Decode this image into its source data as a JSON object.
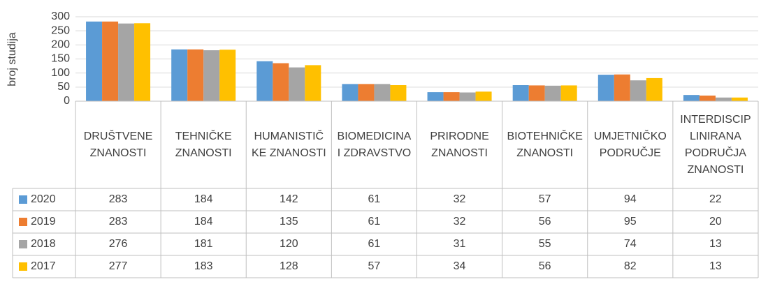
{
  "chart_data": {
    "type": "bar",
    "y_label": "broj studija",
    "categories": [
      "DRUŠTVENE ZNANOSTI",
      "TEHNIČKE ZNANOSTI",
      "HUMANISTIČKE ZNANOSTI",
      "BIOMEDICINA I ZDRAVSTVO",
      "PRIRODNE ZNANOSTI",
      "BIOTEHNIČKE ZNANOSTI",
      "UMJETNIČKO PODRUČJE",
      "INTERDISCIPLINIRANA PODRUČJA ZNANOSTI"
    ],
    "series": [
      {
        "name": "2020",
        "color": "#5b9bd5",
        "values": [
          283,
          184,
          142,
          61,
          32,
          57,
          94,
          22
        ]
      },
      {
        "name": "2019",
        "color": "#ed7d31",
        "values": [
          283,
          184,
          135,
          61,
          32,
          56,
          95,
          20
        ]
      },
      {
        "name": "2018",
        "color": "#a5a5a5",
        "values": [
          276,
          181,
          120,
          61,
          31,
          55,
          74,
          13
        ]
      },
      {
        "name": "2017",
        "color": "#ffc000",
        "values": [
          277,
          183,
          128,
          57,
          34,
          56,
          82,
          13
        ]
      }
    ],
    "ylim": [
      0,
      300
    ],
    "yticks": [
      0,
      50,
      100,
      150,
      200,
      250,
      300
    ],
    "grid": true,
    "data_table": true
  }
}
